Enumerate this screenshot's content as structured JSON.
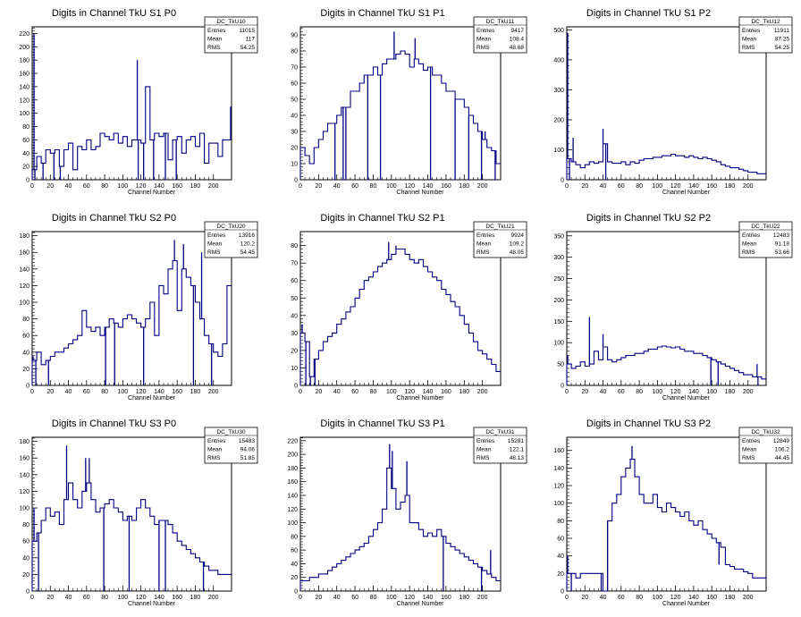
{
  "accent_color": "#000080",
  "chart_data": [
    {
      "type": "histogram",
      "title": "Digits in Channel TkU S1 P0",
      "xlabel": "Channel Number",
      "ylabel": "",
      "xlim": [
        0,
        220
      ],
      "ylim": [
        0,
        230
      ],
      "xticks": [
        0,
        20,
        40,
        60,
        80,
        100,
        120,
        140,
        160,
        180,
        200
      ],
      "yticks": [
        0,
        20,
        40,
        60,
        80,
        100,
        120,
        140,
        160,
        180,
        200,
        220
      ],
      "stats": {
        "name": "DC_TkU10",
        "entries": "11015",
        "mean": "117",
        "rms": "54.25"
      },
      "series": [
        {
          "bin_width": 5,
          "values": [
            15,
            35,
            25,
            45,
            40,
            45,
            20,
            45,
            55,
            15,
            50,
            45,
            60,
            45,
            50,
            70,
            65,
            60,
            70,
            55,
            65,
            50,
            60,
            60,
            55,
            140,
            60,
            70,
            65,
            70,
            30,
            60,
            65,
            40,
            60,
            65,
            50,
            70,
            25,
            55,
            55,
            35,
            60,
            60
          ]
        }
      ],
      "spikes": [
        [
          2,
          220
        ],
        [
          3,
          0
        ],
        [
          12,
          0
        ],
        [
          24,
          0
        ],
        [
          31,
          0
        ],
        [
          116,
          180
        ],
        [
          117,
          0
        ],
        [
          123,
          0
        ],
        [
          134,
          0
        ],
        [
          147,
          0
        ],
        [
          159,
          0
        ],
        [
          219,
          110
        ]
      ]
    },
    {
      "type": "histogram",
      "title": "Digits in Channel TkU S1 P1",
      "xlabel": "Channel Number",
      "ylabel": "",
      "xlim": [
        0,
        220
      ],
      "ylim": [
        0,
        95
      ],
      "xticks": [
        0,
        20,
        40,
        60,
        80,
        100,
        120,
        140,
        160,
        180,
        200
      ],
      "yticks": [
        0,
        10,
        20,
        30,
        40,
        50,
        60,
        70,
        80,
        90
      ],
      "stats": {
        "name": "DC_TkU11",
        "entries": "9417",
        "mean": "108.4",
        "rms": "48.68"
      },
      "series": [
        {
          "bin_width": 5,
          "values": [
            20,
            15,
            10,
            20,
            25,
            30,
            35,
            35,
            40,
            45,
            45,
            55,
            55,
            60,
            65,
            65,
            70,
            65,
            72,
            75,
            75,
            78,
            80,
            78,
            70,
            75,
            72,
            68,
            70,
            65,
            65,
            60,
            55,
            55,
            50,
            50,
            45,
            40,
            35,
            30,
            25,
            20,
            18,
            10
          ]
        }
      ],
      "spikes": [
        [
          38,
          0
        ],
        [
          47,
          0
        ],
        [
          50,
          0
        ],
        [
          74,
          0
        ],
        [
          88,
          0
        ],
        [
          103,
          92
        ],
        [
          126,
          88
        ],
        [
          143,
          0
        ],
        [
          170,
          0
        ],
        [
          185,
          0
        ],
        [
          199,
          0
        ],
        [
          203,
          30
        ],
        [
          214,
          0
        ]
      ]
    },
    {
      "type": "histogram",
      "title": "Digits in Channel TkU S1 P2",
      "xlabel": "Channel Number",
      "ylabel": "",
      "xlim": [
        0,
        220
      ],
      "ylim": [
        0,
        510
      ],
      "xticks": [
        0,
        20,
        40,
        60,
        80,
        100,
        120,
        140,
        160,
        180,
        200
      ],
      "yticks": [
        0,
        100,
        200,
        300,
        400,
        500
      ],
      "stats": {
        "name": "DC_TkU12",
        "entries": "11911",
        "mean": "87.25",
        "rms": "54.25"
      },
      "series": [
        {
          "bin_width": 5,
          "values": [
            70,
            60,
            50,
            40,
            50,
            60,
            55,
            60,
            120,
            60,
            55,
            55,
            60,
            50,
            60,
            55,
            65,
            70,
            70,
            75,
            75,
            80,
            80,
            85,
            80,
            80,
            75,
            80,
            75,
            70,
            75,
            70,
            65,
            60,
            50,
            45,
            40,
            40,
            35,
            30,
            25,
            25,
            20,
            20
          ]
        }
      ],
      "spikes": [
        [
          1,
          490
        ],
        [
          3,
          0
        ],
        [
          7,
          140
        ],
        [
          40,
          170
        ],
        [
          43,
          0
        ]
      ]
    },
    {
      "type": "histogram",
      "title": "Digits in Channel TkU S2 P0",
      "xlabel": "Channel Number",
      "ylabel": "",
      "xlim": [
        0,
        220
      ],
      "ylim": [
        0,
        185
      ],
      "xticks": [
        0,
        20,
        40,
        60,
        80,
        100,
        120,
        140,
        160,
        180,
        200
      ],
      "yticks": [
        0,
        20,
        40,
        60,
        80,
        100,
        120,
        140,
        160,
        180
      ],
      "stats": {
        "name": "DC_TkU20",
        "entries": "13916",
        "mean": "120.2",
        "rms": "54.45"
      },
      "series": [
        {
          "bin_width": 5,
          "values": [
            30,
            40,
            25,
            30,
            35,
            40,
            40,
            45,
            50,
            55,
            60,
            90,
            70,
            65,
            70,
            60,
            70,
            80,
            75,
            70,
            80,
            85,
            80,
            75,
            70,
            80,
            100,
            60,
            120,
            110,
            140,
            150,
            90,
            140,
            130,
            120,
            100,
            80,
            60,
            50,
            40,
            35,
            50,
            120
          ]
        }
      ],
      "spikes": [
        [
          1,
          35
        ],
        [
          4,
          0
        ],
        [
          18,
          0
        ],
        [
          81,
          0
        ],
        [
          91,
          0
        ],
        [
          123,
          0
        ],
        [
          157,
          175
        ],
        [
          167,
          170
        ],
        [
          178,
          0
        ],
        [
          187,
          160
        ],
        [
          198,
          0
        ]
      ]
    },
    {
      "type": "histogram",
      "title": "Digits in Channel TkU S2 P1",
      "xlabel": "Channel Number",
      "ylabel": "",
      "xlim": [
        0,
        220
      ],
      "ylim": [
        0,
        88
      ],
      "xticks": [
        0,
        20,
        40,
        60,
        80,
        100,
        120,
        140,
        160,
        180,
        200
      ],
      "yticks": [
        0,
        10,
        20,
        30,
        40,
        50,
        60,
        70,
        80
      ],
      "stats": {
        "name": "DC_TkU21",
        "entries": "9924",
        "mean": "109.2",
        "rms": "48.05"
      },
      "series": [
        {
          "bin_width": 5,
          "values": [
            30,
            25,
            5,
            15,
            20,
            25,
            28,
            30,
            35,
            38,
            42,
            45,
            50,
            55,
            60,
            62,
            65,
            68,
            70,
            72,
            75,
            78,
            78,
            75,
            72,
            70,
            72,
            68,
            65,
            62,
            60,
            55,
            52,
            48,
            45,
            40,
            35,
            30,
            25,
            20,
            18,
            15,
            12,
            8
          ]
        }
      ],
      "spikes": [
        [
          2,
          35
        ],
        [
          6,
          0
        ],
        [
          11,
          0
        ],
        [
          16,
          0
        ],
        [
          97,
          82
        ],
        [
          105,
          80
        ]
      ]
    },
    {
      "type": "histogram",
      "title": "Digits in Channel TkU S2 P2",
      "xlabel": "Channel Number",
      "ylabel": "",
      "xlim": [
        0,
        220
      ],
      "ylim": [
        0,
        360
      ],
      "xticks": [
        0,
        20,
        40,
        60,
        80,
        100,
        120,
        140,
        160,
        180,
        200
      ],
      "yticks": [
        0,
        50,
        100,
        150,
        200,
        250,
        300,
        350
      ],
      "stats": {
        "name": "DC_TkU22",
        "entries": "12483",
        "mean": "91.18",
        "rms": "53.66"
      },
      "series": [
        {
          "bin_width": 5,
          "values": [
            50,
            40,
            45,
            55,
            45,
            50,
            80,
            60,
            90,
            60,
            55,
            60,
            65,
            70,
            70,
            75,
            75,
            80,
            85,
            85,
            90,
            92,
            90,
            88,
            90,
            85,
            80,
            80,
            75,
            75,
            70,
            65,
            60,
            55,
            50,
            45,
            40,
            35,
            30,
            25,
            25,
            20,
            20,
            15
          ]
        }
      ],
      "spikes": [
        [
          1,
          70
        ],
        [
          25,
          160
        ],
        [
          40,
          120
        ],
        [
          159,
          0
        ],
        [
          167,
          0
        ],
        [
          210,
          50
        ],
        [
          211,
          0
        ]
      ]
    },
    {
      "type": "histogram",
      "title": "Digits in Channel TkU S3 P0",
      "xlabel": "Channel Number",
      "ylabel": "",
      "xlim": [
        0,
        220
      ],
      "ylim": [
        0,
        185
      ],
      "xticks": [
        0,
        20,
        40,
        60,
        80,
        100,
        120,
        140,
        160,
        180,
        200
      ],
      "yticks": [
        0,
        20,
        40,
        60,
        80,
        100,
        120,
        140,
        160,
        180
      ],
      "stats": {
        "name": "DC_TkU30",
        "entries": "15483",
        "mean": "94.06",
        "rms": "51.85"
      },
      "series": [
        {
          "bin_width": 5,
          "values": [
            60,
            70,
            85,
            100,
            90,
            95,
            80,
            110,
            130,
            110,
            100,
            120,
            130,
            110,
            95,
            100,
            105,
            110,
            100,
            95,
            85,
            90,
            85,
            100,
            110,
            100,
            90,
            80,
            85,
            85,
            80,
            70,
            60,
            55,
            50,
            45,
            40,
            35,
            30,
            25,
            25,
            20,
            20,
            20
          ]
        }
      ],
      "spikes": [
        [
          2,
          100
        ],
        [
          7,
          0
        ],
        [
          38,
          175
        ],
        [
          59,
          160
        ],
        [
          63,
          160
        ],
        [
          79,
          0
        ],
        [
          107,
          0
        ],
        [
          140,
          0
        ],
        [
          147,
          0
        ],
        [
          189,
          0
        ]
      ]
    },
    {
      "type": "histogram",
      "title": "Digits in Channel TkU S3 P1",
      "xlabel": "Channel Number",
      "ylabel": "",
      "xlim": [
        0,
        220
      ],
      "ylim": [
        0,
        225
      ],
      "xticks": [
        0,
        20,
        40,
        60,
        80,
        100,
        120,
        140,
        160,
        180,
        200
      ],
      "yticks": [
        0,
        20,
        40,
        60,
        80,
        100,
        120,
        140,
        160,
        180,
        200,
        220
      ],
      "stats": {
        "name": "DC_TkU31",
        "entries": "15281",
        "mean": "122.1",
        "rms": "48.13"
      },
      "series": [
        {
          "bin_width": 5,
          "values": [
            15,
            15,
            20,
            20,
            25,
            25,
            30,
            35,
            40,
            45,
            50,
            55,
            60,
            65,
            70,
            80,
            90,
            100,
            120,
            180,
            150,
            120,
            130,
            140,
            100,
            100,
            90,
            80,
            85,
            80,
            90,
            80,
            70,
            65,
            60,
            55,
            50,
            45,
            40,
            35,
            30,
            25,
            20,
            15
          ]
        }
      ],
      "spikes": [
        [
          98,
          215
        ],
        [
          101,
          205
        ],
        [
          117,
          190
        ],
        [
          157,
          0
        ],
        [
          199,
          0
        ],
        [
          209,
          60
        ]
      ]
    },
    {
      "type": "histogram",
      "title": "Digits in Channel TkU S3 P2",
      "xlabel": "Channel Number",
      "ylabel": "",
      "xlim": [
        0,
        220
      ],
      "ylim": [
        0,
        175
      ],
      "xticks": [
        0,
        20,
        40,
        60,
        80,
        100,
        120,
        140,
        160,
        180,
        200
      ],
      "yticks": [
        0,
        20,
        40,
        60,
        80,
        100,
        120,
        140,
        160
      ],
      "stats": {
        "name": "DC_TkU32",
        "entries": "12849",
        "mean": "106.2",
        "rms": "44.45"
      },
      "series": [
        {
          "bin_width": 5,
          "values": [
            20,
            20,
            15,
            20,
            20,
            20,
            20,
            20,
            0,
            80,
            100,
            110,
            130,
            140,
            150,
            130,
            110,
            100,
            100,
            110,
            95,
            90,
            100,
            95,
            90,
            85,
            90,
            80,
            75,
            80,
            70,
            65,
            60,
            55,
            50,
            30,
            28,
            25,
            25,
            22,
            20,
            15,
            15,
            15
          ]
        }
      ],
      "spikes": [
        [
          1,
          40
        ],
        [
          5,
          0
        ],
        [
          38,
          0
        ],
        [
          45,
          0
        ],
        [
          72,
          165
        ],
        [
          168,
          30
        ]
      ]
    }
  ]
}
